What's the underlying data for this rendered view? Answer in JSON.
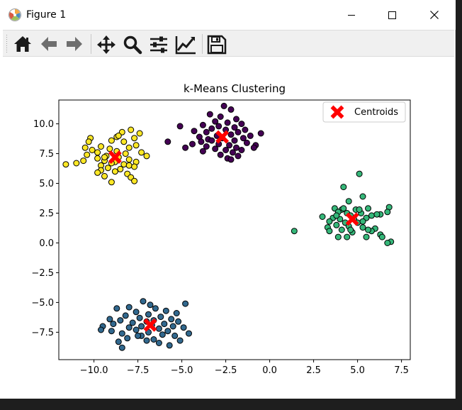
{
  "window": {
    "title": "Figure 1",
    "icons": [
      "matplotlib-icon",
      "minimize-icon",
      "maximize-icon",
      "close-icon"
    ]
  },
  "toolbar": {
    "buttons": [
      {
        "name": "home",
        "icon": "home-icon"
      },
      {
        "name": "back",
        "icon": "back-arrow-icon"
      },
      {
        "name": "forward",
        "icon": "forward-arrow-icon"
      },
      {
        "name": "pan",
        "icon": "pan-move-icon"
      },
      {
        "name": "zoom",
        "icon": "zoom-magnifier-icon"
      },
      {
        "name": "subplots",
        "icon": "configure-subplots-icon"
      },
      {
        "name": "edit-axis",
        "icon": "edit-axis-lines-icon"
      },
      {
        "name": "save",
        "icon": "save-floppy-icon"
      }
    ]
  },
  "chart_data": {
    "type": "scatter",
    "title": "k-Means Clustering",
    "xlabel": "",
    "ylabel": "",
    "xlim": [
      -12.0,
      8.0
    ],
    "ylim": [
      -9.8,
      12.0
    ],
    "xticks": [
      -10.0,
      -7.5,
      -5.0,
      -2.5,
      0.0,
      2.5,
      5.0,
      7.5
    ],
    "xtick_labels": [
      "−10.0",
      "−7.5",
      "−5.0",
      "−2.5",
      "0.0",
      "2.5",
      "5.0",
      "7.5"
    ],
    "yticks": [
      -7.5,
      -5.0,
      -2.5,
      0.0,
      2.5,
      5.0,
      7.5,
      10.0
    ],
    "ytick_labels": [
      "−7.5",
      "−5.0",
      "−2.5",
      "0.0",
      "2.5",
      "5.0",
      "7.5",
      "10.0"
    ],
    "grid": false,
    "legend": {
      "position": "top-right",
      "entries": [
        "Centroids"
      ]
    },
    "colors": {
      "cluster_purple": "#440154",
      "cluster_blue": "#31688e",
      "cluster_green": "#35b779",
      "cluster_yellow": "#fde725",
      "centroid": "#ff0000",
      "edge": "#000000"
    },
    "clusters": [
      {
        "color": "#440154",
        "points": [
          [
            -2.6,
            11.5
          ],
          [
            -2.2,
            11.2
          ],
          [
            -3.4,
            10.8
          ],
          [
            -2.8,
            10.6
          ],
          [
            -1.9,
            10.4
          ],
          [
            -3.1,
            10.2
          ],
          [
            -2.4,
            10.1
          ],
          [
            -1.6,
            10.0
          ],
          [
            -3.8,
            9.9
          ],
          [
            -2.9,
            9.8
          ],
          [
            -2.0,
            9.7
          ],
          [
            -3.3,
            9.6
          ],
          [
            -1.4,
            9.5
          ],
          [
            -2.5,
            9.5
          ],
          [
            -4.3,
            9.4
          ],
          [
            -3.6,
            9.3
          ],
          [
            -1.8,
            9.3
          ],
          [
            -0.5,
            9.2
          ],
          [
            -2.2,
            9.1
          ],
          [
            -3.0,
            9.0
          ],
          [
            -1.1,
            9.0
          ],
          [
            -4.0,
            8.9
          ],
          [
            -2.7,
            8.8
          ],
          [
            -1.5,
            8.8
          ],
          [
            -3.5,
            8.7
          ],
          [
            -2.0,
            8.6
          ],
          [
            -3.9,
            8.5
          ],
          [
            -1.3,
            8.4
          ],
          [
            -2.9,
            8.3
          ],
          [
            -4.4,
            8.3
          ],
          [
            -2.3,
            8.2
          ],
          [
            -0.8,
            8.2
          ],
          [
            -3.6,
            8.1
          ],
          [
            -1.9,
            8.0
          ],
          [
            -3.1,
            7.9
          ],
          [
            -2.5,
            7.8
          ],
          [
            -1.6,
            7.8
          ],
          [
            -3.8,
            7.7
          ],
          [
            -2.1,
            7.6
          ],
          [
            -2.8,
            7.4
          ],
          [
            -1.8,
            7.3
          ],
          [
            -2.4,
            7.1
          ],
          [
            -2.2,
            7.0
          ],
          [
            -5.1,
            9.8
          ],
          [
            -5.8,
            8.5
          ],
          [
            -4.8,
            8.0
          ],
          [
            -3.3,
            8.6
          ],
          [
            -0.9,
            8.0
          ]
        ]
      },
      {
        "color": "#31688e",
        "points": [
          [
            -7.2,
            -4.9
          ],
          [
            -6.8,
            -5.2
          ],
          [
            -4.8,
            -5.1
          ],
          [
            -8.0,
            -5.4
          ],
          [
            -6.5,
            -5.5
          ],
          [
            -8.7,
            -5.5
          ],
          [
            -5.9,
            -5.7
          ],
          [
            -7.6,
            -5.8
          ],
          [
            -5.3,
            -5.9
          ],
          [
            -6.9,
            -6.0
          ],
          [
            -8.2,
            -6.1
          ],
          [
            -6.2,
            -6.2
          ],
          [
            -7.4,
            -6.3
          ],
          [
            -5.6,
            -6.4
          ],
          [
            -9.1,
            -6.4
          ],
          [
            -6.6,
            -6.5
          ],
          [
            -8.5,
            -6.5
          ],
          [
            -7.0,
            -6.6
          ],
          [
            -5.2,
            -6.6
          ],
          [
            -7.8,
            -6.7
          ],
          [
            -6.0,
            -6.8
          ],
          [
            -8.9,
            -6.8
          ],
          [
            -6.7,
            -6.9
          ],
          [
            -5.5,
            -7.0
          ],
          [
            -7.3,
            -7.0
          ],
          [
            -9.5,
            -7.0
          ],
          [
            -4.9,
            -7.1
          ],
          [
            -8.0,
            -7.1
          ],
          [
            -6.3,
            -7.2
          ],
          [
            -7.6,
            -7.3
          ],
          [
            -5.8,
            -7.4
          ],
          [
            -9.0,
            -7.4
          ],
          [
            -6.9,
            -7.5
          ],
          [
            -4.6,
            -7.6
          ],
          [
            -8.4,
            -7.6
          ],
          [
            -6.1,
            -7.7
          ],
          [
            -7.3,
            -7.8
          ],
          [
            -9.6,
            -7.3
          ],
          [
            -5.4,
            -7.8
          ],
          [
            -8.1,
            -8.0
          ],
          [
            -6.6,
            -8.1
          ],
          [
            -7.0,
            -8.2
          ],
          [
            -8.6,
            -8.3
          ],
          [
            -5.1,
            -8.2
          ],
          [
            -6.3,
            -8.4
          ],
          [
            -7.5,
            -7.8
          ],
          [
            -8.4,
            -8.8
          ],
          [
            -5.7,
            -8.6
          ]
        ]
      },
      {
        "color": "#35b779",
        "points": [
          [
            5.1,
            5.8
          ],
          [
            4.2,
            4.7
          ],
          [
            5.3,
            3.9
          ],
          [
            4.5,
            3.5
          ],
          [
            6.8,
            3.0
          ],
          [
            3.7,
            2.9
          ],
          [
            4.1,
            2.8
          ],
          [
            5.6,
            2.9
          ],
          [
            4.9,
            2.8
          ],
          [
            6.7,
            2.6
          ],
          [
            6.3,
            2.4
          ],
          [
            3.9,
            2.6
          ],
          [
            4.4,
            2.5
          ],
          [
            5.2,
            2.5
          ],
          [
            3.0,
            2.2
          ],
          [
            4.6,
            2.3
          ],
          [
            5.8,
            2.3
          ],
          [
            3.6,
            2.1
          ],
          [
            4.0,
            2.0
          ],
          [
            4.8,
            2.0
          ],
          [
            5.5,
            2.1
          ],
          [
            6.1,
            2.4
          ],
          [
            3.4,
            1.8
          ],
          [
            4.3,
            1.7
          ],
          [
            5.0,
            1.7
          ],
          [
            3.8,
            1.5
          ],
          [
            4.5,
            1.4
          ],
          [
            5.3,
            1.3
          ],
          [
            3.3,
            1.3
          ],
          [
            6.0,
            1.2
          ],
          [
            5.8,
            1.0
          ],
          [
            4.1,
            1.1
          ],
          [
            1.4,
            1.0
          ],
          [
            3.4,
            1.0
          ],
          [
            4.7,
            0.9
          ],
          [
            5.6,
            1.1
          ],
          [
            6.3,
            0.7
          ],
          [
            4.4,
            0.5
          ],
          [
            3.9,
            0.5
          ],
          [
            5.5,
            0.5
          ],
          [
            6.4,
            0.5
          ],
          [
            6.9,
            0.1
          ],
          [
            6.7,
            0.0
          ],
          [
            4.2,
            2.9
          ],
          [
            3.8,
            2.3
          ],
          [
            5.1,
            2.8
          ],
          [
            4.6,
            1.1
          ],
          [
            5.3,
            1.8
          ]
        ]
      },
      {
        "color": "#fde725",
        "points": [
          [
            -7.9,
            9.5
          ],
          [
            -8.4,
            9.3
          ],
          [
            -7.4,
            9.2
          ],
          [
            -8.7,
            8.9
          ],
          [
            -7.7,
            8.8
          ],
          [
            -10.2,
            8.8
          ],
          [
            -9.0,
            8.6
          ],
          [
            -10.3,
            8.5
          ],
          [
            -8.3,
            8.5
          ],
          [
            -7.6,
            8.2
          ],
          [
            -9.6,
            8.1
          ],
          [
            -10.5,
            8.0
          ],
          [
            -8.0,
            8.0
          ],
          [
            -9.1,
            7.9
          ],
          [
            -10.1,
            7.8
          ],
          [
            -8.7,
            7.7
          ],
          [
            -7.3,
            7.6
          ],
          [
            -9.8,
            7.6
          ],
          [
            -8.2,
            7.5
          ],
          [
            -10.4,
            7.4
          ],
          [
            -9.3,
            7.3
          ],
          [
            -7.0,
            7.3
          ],
          [
            -8.6,
            7.2
          ],
          [
            -9.8,
            7.1
          ],
          [
            -8.0,
            7.0
          ],
          [
            -9.4,
            6.9
          ],
          [
            -10.6,
            6.9
          ],
          [
            -8.8,
            6.8
          ],
          [
            -7.6,
            6.8
          ],
          [
            -9.0,
            6.7
          ],
          [
            -8.3,
            6.6
          ],
          [
            -11.0,
            6.7
          ],
          [
            -9.6,
            6.5
          ],
          [
            -8.0,
            6.5
          ],
          [
            -7.7,
            6.4
          ],
          [
            -9.2,
            6.3
          ],
          [
            -8.5,
            6.2
          ],
          [
            -9.6,
            6.1
          ],
          [
            -8.8,
            6.0
          ],
          [
            -9.8,
            5.9
          ],
          [
            -8.1,
            5.8
          ],
          [
            -9.4,
            5.6
          ],
          [
            -7.9,
            5.5
          ],
          [
            -11.6,
            6.6
          ],
          [
            -9.0,
            5.1
          ],
          [
            -7.7,
            5.2
          ],
          [
            -8.6,
            9.0
          ],
          [
            -9.4,
            7.2
          ]
        ]
      }
    ],
    "centroids": [
      {
        "x": -2.7,
        "y": 8.9
      },
      {
        "x": -6.8,
        "y": -6.9
      },
      {
        "x": 4.7,
        "y": 2.0
      },
      {
        "x": -8.8,
        "y": 7.2
      }
    ]
  }
}
